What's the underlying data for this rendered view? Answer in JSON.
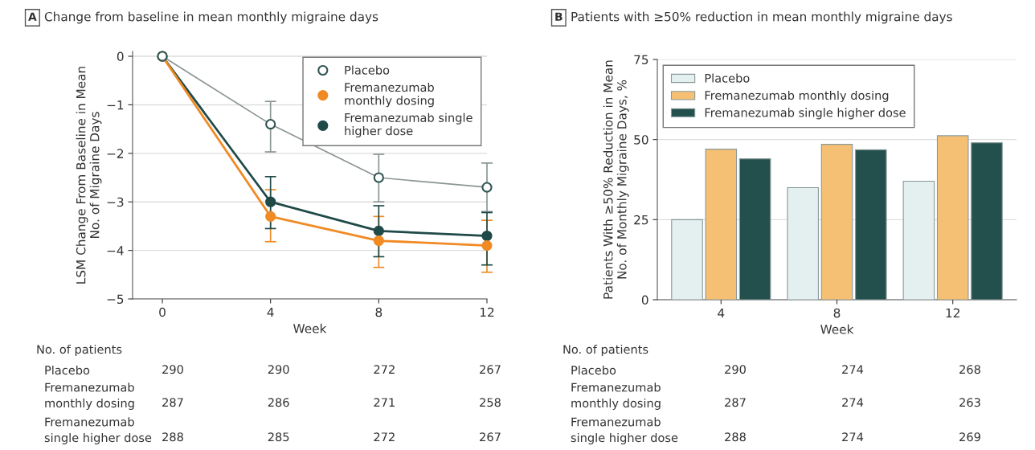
{
  "chart_data": [
    {
      "type": "line",
      "title": "Change from baseline in mean monthly migraine days",
      "xlabel": "Week",
      "ylabel": "LSM Change From Baseline in Mean\nNo. of Migraine Days",
      "x": [
        0,
        4,
        8,
        12
      ],
      "xlim": [
        -1.1,
        12
      ],
      "xticks": [
        0,
        4,
        8,
        12
      ],
      "ylim": [
        -5,
        0.1
      ],
      "yticks": [
        -5,
        -4,
        -3,
        -2,
        -1,
        0
      ],
      "grid": "y",
      "legend": "top right",
      "marker": "circle",
      "line_style": "solid",
      "series": [
        {
          "name": "Placebo",
          "color": "#8a9594",
          "values": [
            0,
            -1.4,
            -2.5,
            -2.7
          ],
          "errors": [
            null,
            [
              -1.97,
              -0.93
            ],
            [
              -3.0,
              -2.02
            ],
            [
              -3.2,
              -2.2
            ]
          ]
        },
        {
          "name": "Fremanezumab\nmonthly dosing",
          "color": "#f08a24",
          "values": [
            0,
            -3.3,
            -3.8,
            -3.9
          ],
          "errors": [
            null,
            [
              -3.82,
              -2.75
            ],
            [
              -4.35,
              -3.3
            ],
            [
              -4.45,
              -3.38
            ]
          ]
        },
        {
          "name": "Fremanezumab single\nhigher dose",
          "color": "#1f4a48",
          "values": [
            0,
            -3.0,
            -3.6,
            -3.7
          ],
          "errors": [
            null,
            [
              -3.55,
              -2.48
            ],
            [
              -4.13,
              -3.08
            ],
            [
              -4.3,
              -3.22
            ]
          ]
        }
      ],
      "annotations": [
        "A",
        "No. of patients",
        "Placebo",
        "290",
        "290",
        "272",
        "267",
        "Fremanezumab\nmonthly dosing",
        "287",
        "286",
        "271",
        "258",
        "Fremanezumab\nsingle higher dose",
        "288",
        "285",
        "272",
        "267"
      ]
    },
    {
      "type": "bar",
      "title": "Patients with ≥50% reduction in mean monthly migraine days",
      "xlabel": "Week",
      "ylabel": "Patients With ≥50% Reduction in Mean\nNo. of Monthly Migraine Days, %",
      "categories": [
        "4",
        "8",
        "12"
      ],
      "ylim": [
        0,
        75
      ],
      "yticks": [
        0,
        25,
        50,
        75
      ],
      "grid": "y",
      "legend": "top left",
      "series": [
        {
          "name": "Placebo",
          "color": "#e4eff0",
          "values": [
            25,
            35,
            37
          ]
        },
        {
          "name": "Fremanezumab monthly dosing",
          "color": "#f5bf74",
          "values": [
            47,
            48.5,
            51.2
          ]
        },
        {
          "name": "Fremanezumab single higher dose",
          "color": "#234f4c",
          "values": [
            44,
            46.8,
            49
          ]
        }
      ],
      "annotations": [
        "B",
        "No. of patients",
        "Placebo",
        "290",
        "274",
        "268",
        "Fremanezumab\nmonthly dosing",
        "287",
        "274",
        "263",
        "Fremanezumab\nsingle higher dose",
        "288",
        "274",
        "269"
      ]
    }
  ]
}
